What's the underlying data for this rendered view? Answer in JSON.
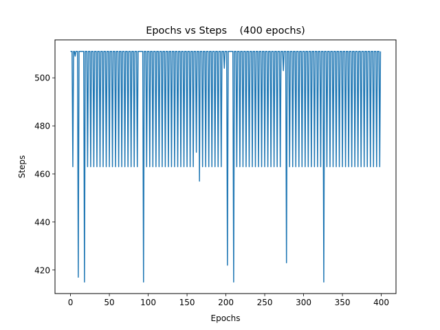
{
  "chart_data": {
    "type": "line",
    "title": "Epochs vs Steps    (400 epochs)",
    "xlabel": "Epochs",
    "ylabel": "Steps",
    "xlim": [
      -19.95,
      418.95
    ],
    "ylim": [
      410.2,
      515.8
    ],
    "xticks": [
      0,
      50,
      100,
      150,
      200,
      250,
      300,
      350,
      400
    ],
    "yticks": [
      420,
      440,
      460,
      480,
      500
    ],
    "grid": false,
    "legend": "none",
    "color": "#1f77b4",
    "series": [
      {
        "points": [
          [
            0,
            511
          ],
          [
            2,
            511
          ],
          [
            3,
            463
          ],
          [
            4,
            511
          ],
          [
            5,
            511
          ],
          [
            6,
            509
          ],
          [
            7,
            511
          ],
          [
            9,
            511
          ],
          [
            10,
            417
          ],
          [
            11,
            511
          ],
          [
            13,
            511
          ],
          [
            14,
            511
          ],
          [
            17,
            511
          ],
          [
            18,
            415
          ],
          [
            19,
            511
          ],
          [
            21,
            511
          ],
          [
            22,
            463
          ],
          [
            23,
            511
          ],
          [
            25,
            511
          ],
          [
            26,
            463
          ],
          [
            27,
            511
          ],
          [
            29,
            511
          ],
          [
            30,
            463
          ],
          [
            31,
            511
          ],
          [
            33,
            511
          ],
          [
            34,
            463
          ],
          [
            35,
            511
          ],
          [
            37,
            511
          ],
          [
            38,
            463
          ],
          [
            39,
            511
          ],
          [
            41,
            511
          ],
          [
            42,
            463
          ],
          [
            43,
            511
          ],
          [
            45,
            511
          ],
          [
            46,
            463
          ],
          [
            47,
            511
          ],
          [
            49,
            511
          ],
          [
            50,
            463
          ],
          [
            51,
            511
          ],
          [
            53,
            511
          ],
          [
            54,
            463
          ],
          [
            55,
            511
          ],
          [
            57,
            511
          ],
          [
            58,
            463
          ],
          [
            59,
            511
          ],
          [
            61,
            511
          ],
          [
            62,
            463
          ],
          [
            63,
            511
          ],
          [
            65,
            511
          ],
          [
            66,
            463
          ],
          [
            67,
            511
          ],
          [
            69,
            511
          ],
          [
            70,
            463
          ],
          [
            71,
            511
          ],
          [
            73,
            511
          ],
          [
            74,
            463
          ],
          [
            75,
            511
          ],
          [
            77,
            511
          ],
          [
            78,
            463
          ],
          [
            79,
            511
          ],
          [
            81,
            511
          ],
          [
            82,
            463
          ],
          [
            83,
            511
          ],
          [
            85,
            511
          ],
          [
            86,
            463
          ],
          [
            87,
            511
          ],
          [
            93,
            511
          ],
          [
            94,
            415
          ],
          [
            95,
            511
          ],
          [
            97,
            511
          ],
          [
            98,
            463
          ],
          [
            99,
            511
          ],
          [
            101,
            511
          ],
          [
            102,
            463
          ],
          [
            103,
            511
          ],
          [
            105,
            511
          ],
          [
            106,
            463
          ],
          [
            107,
            511
          ],
          [
            109,
            511
          ],
          [
            110,
            463
          ],
          [
            111,
            511
          ],
          [
            113,
            511
          ],
          [
            114,
            463
          ],
          [
            115,
            511
          ],
          [
            117,
            511
          ],
          [
            118,
            463
          ],
          [
            119,
            511
          ],
          [
            121,
            511
          ],
          [
            122,
            463
          ],
          [
            123,
            511
          ],
          [
            125,
            511
          ],
          [
            126,
            463
          ],
          [
            127,
            511
          ],
          [
            129,
            511
          ],
          [
            130,
            463
          ],
          [
            131,
            511
          ],
          [
            133,
            511
          ],
          [
            134,
            463
          ],
          [
            135,
            511
          ],
          [
            137,
            511
          ],
          [
            138,
            463
          ],
          [
            139,
            511
          ],
          [
            141,
            511
          ],
          [
            142,
            463
          ],
          [
            143,
            511
          ],
          [
            145,
            511
          ],
          [
            146,
            463
          ],
          [
            147,
            511
          ],
          [
            149,
            511
          ],
          [
            150,
            463
          ],
          [
            151,
            511
          ],
          [
            153,
            511
          ],
          [
            154,
            463
          ],
          [
            155,
            511
          ],
          [
            157,
            511
          ],
          [
            158,
            463
          ],
          [
            159,
            511
          ],
          [
            161,
            511
          ],
          [
            162,
            469
          ],
          [
            163,
            511
          ],
          [
            165,
            511
          ],
          [
            166,
            457
          ],
          [
            167,
            511
          ],
          [
            169,
            511
          ],
          [
            170,
            463
          ],
          [
            171,
            511
          ],
          [
            173,
            511
          ],
          [
            174,
            463
          ],
          [
            175,
            511
          ],
          [
            177,
            511
          ],
          [
            178,
            463
          ],
          [
            179,
            511
          ],
          [
            181,
            511
          ],
          [
            182,
            463
          ],
          [
            183,
            511
          ],
          [
            185,
            511
          ],
          [
            186,
            463
          ],
          [
            187,
            511
          ],
          [
            189,
            511
          ],
          [
            190,
            463
          ],
          [
            191,
            511
          ],
          [
            193,
            511
          ],
          [
            194,
            463
          ],
          [
            195,
            511
          ],
          [
            197,
            511
          ],
          [
            198,
            504
          ],
          [
            199,
            511
          ],
          [
            201,
            511
          ],
          [
            202,
            422
          ],
          [
            203,
            511
          ],
          [
            209,
            511
          ],
          [
            210,
            415
          ],
          [
            211,
            511
          ],
          [
            213,
            511
          ],
          [
            214,
            463
          ],
          [
            215,
            511
          ],
          [
            217,
            511
          ],
          [
            218,
            463
          ],
          [
            219,
            511
          ],
          [
            221,
            511
          ],
          [
            222,
            463
          ],
          [
            223,
            511
          ],
          [
            225,
            511
          ],
          [
            226,
            463
          ],
          [
            227,
            511
          ],
          [
            229,
            511
          ],
          [
            230,
            463
          ],
          [
            231,
            511
          ],
          [
            233,
            511
          ],
          [
            234,
            463
          ],
          [
            235,
            511
          ],
          [
            237,
            511
          ],
          [
            238,
            463
          ],
          [
            239,
            511
          ],
          [
            241,
            511
          ],
          [
            242,
            463
          ],
          [
            243,
            511
          ],
          [
            245,
            511
          ],
          [
            246,
            463
          ],
          [
            247,
            511
          ],
          [
            249,
            511
          ],
          [
            250,
            463
          ],
          [
            251,
            511
          ],
          [
            253,
            511
          ],
          [
            254,
            463
          ],
          [
            255,
            511
          ],
          [
            257,
            511
          ],
          [
            258,
            463
          ],
          [
            259,
            511
          ],
          [
            261,
            511
          ],
          [
            262,
            463
          ],
          [
            263,
            511
          ],
          [
            265,
            511
          ],
          [
            266,
            463
          ],
          [
            267,
            511
          ],
          [
            269,
            511
          ],
          [
            270,
            463
          ],
          [
            271,
            511
          ],
          [
            273,
            511
          ],
          [
            274,
            503
          ],
          [
            275,
            511
          ],
          [
            277,
            511
          ],
          [
            278,
            423
          ],
          [
            279,
            511
          ],
          [
            281,
            511
          ],
          [
            282,
            463
          ],
          [
            283,
            511
          ],
          [
            285,
            511
          ],
          [
            286,
            463
          ],
          [
            287,
            511
          ],
          [
            289,
            511
          ],
          [
            290,
            463
          ],
          [
            291,
            511
          ],
          [
            293,
            511
          ],
          [
            294,
            463
          ],
          [
            295,
            511
          ],
          [
            297,
            511
          ],
          [
            298,
            463
          ],
          [
            299,
            511
          ],
          [
            301,
            511
          ],
          [
            302,
            463
          ],
          [
            303,
            511
          ],
          [
            305,
            511
          ],
          [
            306,
            463
          ],
          [
            307,
            511
          ],
          [
            309,
            511
          ],
          [
            310,
            463
          ],
          [
            311,
            511
          ],
          [
            313,
            511
          ],
          [
            314,
            463
          ],
          [
            315,
            511
          ],
          [
            317,
            511
          ],
          [
            318,
            463
          ],
          [
            319,
            511
          ],
          [
            321,
            511
          ],
          [
            322,
            463
          ],
          [
            323,
            511
          ],
          [
            325,
            511
          ],
          [
            326,
            415
          ],
          [
            327,
            511
          ],
          [
            329,
            511
          ],
          [
            330,
            463
          ],
          [
            331,
            511
          ],
          [
            333,
            511
          ],
          [
            334,
            463
          ],
          [
            335,
            511
          ],
          [
            337,
            511
          ],
          [
            338,
            463
          ],
          [
            339,
            511
          ],
          [
            341,
            511
          ],
          [
            342,
            463
          ],
          [
            343,
            511
          ],
          [
            345,
            511
          ],
          [
            346,
            463
          ],
          [
            347,
            511
          ],
          [
            349,
            511
          ],
          [
            350,
            463
          ],
          [
            351,
            511
          ],
          [
            353,
            511
          ],
          [
            354,
            463
          ],
          [
            355,
            511
          ],
          [
            357,
            511
          ],
          [
            358,
            463
          ],
          [
            359,
            511
          ],
          [
            361,
            511
          ],
          [
            362,
            463
          ],
          [
            363,
            511
          ],
          [
            365,
            511
          ],
          [
            366,
            463
          ],
          [
            367,
            511
          ],
          [
            369,
            511
          ],
          [
            370,
            463
          ],
          [
            371,
            511
          ],
          [
            373,
            511
          ],
          [
            374,
            463
          ],
          [
            375,
            511
          ],
          [
            377,
            511
          ],
          [
            378,
            463
          ],
          [
            379,
            511
          ],
          [
            381,
            511
          ],
          [
            382,
            463
          ],
          [
            383,
            511
          ],
          [
            385,
            511
          ],
          [
            386,
            463
          ],
          [
            387,
            511
          ],
          [
            389,
            511
          ],
          [
            390,
            463
          ],
          [
            391,
            511
          ],
          [
            393,
            511
          ],
          [
            394,
            463
          ],
          [
            395,
            511
          ],
          [
            397,
            511
          ],
          [
            398,
            463
          ],
          [
            399,
            511
          ]
        ]
      }
    ]
  }
}
